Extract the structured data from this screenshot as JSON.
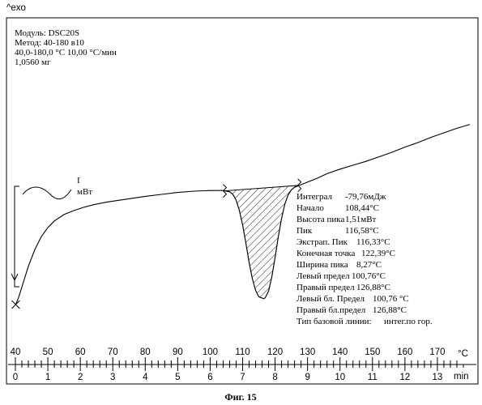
{
  "top_label": "^exo",
  "header": {
    "lines": [
      "Модуль:  DSC20S",
      "Метод:  40-180 в10",
      "40,0-180,0 °C 10,00 °C/мин",
      "1,0560 мг"
    ]
  },
  "scale_bar": {
    "value": "I",
    "unit": "мВт"
  },
  "results": [
    {
      "label": "Интеграл",
      "value": "-79,76мДж"
    },
    {
      "label": "Начало",
      "value": "108,44°C"
    },
    {
      "label": "Высота пика",
      "value": "1,51мВт"
    },
    {
      "label": "Пик",
      "value": "116,58°C"
    },
    {
      "label": "Экстрап. Пик",
      "value": "116,33°C"
    },
    {
      "label": "Конечная точка",
      "value": "122,39°C"
    },
    {
      "label": "Ширина пика",
      "value": "8,27°C"
    },
    {
      "label": "Левый предел",
      "value": "100,76°C"
    },
    {
      "label": "Правый предел",
      "value": "126,88°C"
    },
    {
      "label": "Левый бл. Предел",
      "value": "100,76 °C"
    },
    {
      "label": "Правый бл.предел",
      "value": "126,88°C"
    },
    {
      "label": "Тип базовой линии:",
      "value": "интег.по гор."
    }
  ],
  "caption": "Фиг. 15",
  "chart_data": {
    "type": "line",
    "temperature_axis": {
      "unit": "°C",
      "range": [
        40,
        180
      ],
      "major_ticks": [
        40,
        50,
        60,
        70,
        80,
        90,
        100,
        110,
        120,
        130,
        140,
        150,
        160,
        170
      ],
      "minor_step": 2
    },
    "time_axis": {
      "unit": "min",
      "range": [
        0,
        14
      ],
      "major_ticks": [
        0,
        1,
        2,
        3,
        4,
        5,
        6,
        7,
        8,
        9,
        10,
        11,
        12,
        13
      ],
      "minor_step": 0.2
    },
    "series": [
      {
        "x": [
          40.1,
          41,
          42,
          43,
          44,
          46,
          48,
          50,
          52,
          55,
          58,
          61,
          64,
          68,
          72,
          76,
          80,
          85,
          90,
          95,
          100,
          104,
          106,
          107,
          108,
          109,
          110,
          111,
          112,
          113,
          114,
          115,
          116,
          116.6,
          117,
          118,
          119,
          120,
          121,
          122,
          123,
          124,
          125,
          126,
          127,
          128,
          130,
          133,
          136,
          140,
          144,
          148,
          152,
          156,
          160,
          164,
          168,
          172,
          176,
          180
        ],
        "y": [
          -1.35,
          -1.24,
          -1.08,
          -0.92,
          -0.76,
          -0.5,
          -0.3,
          -0.16,
          -0.06,
          0.04,
          0.1,
          0.15,
          0.19,
          0.23,
          0.26,
          0.29,
          0.32,
          0.35,
          0.38,
          0.4,
          0.41,
          0.41,
          0.39,
          0.35,
          0.26,
          0.1,
          -0.12,
          -0.4,
          -0.7,
          -0.95,
          -1.13,
          -1.23,
          -1.25,
          -1.26,
          -1.24,
          -1.14,
          -0.92,
          -0.62,
          -0.3,
          -0.02,
          0.2,
          0.34,
          0.42,
          0.46,
          0.48,
          0.5,
          0.54,
          0.6,
          0.67,
          0.74,
          0.8,
          0.86,
          0.93,
          1.0,
          1.08,
          1.15,
          1.23,
          1.3,
          1.37,
          1.43
        ]
      }
    ],
    "peak_area": {
      "from": 104.5,
      "to": 127.5,
      "fill": "hatched"
    },
    "limit_markers": [
      104.5,
      127.5
    ],
    "scale_bar_mW": 1
  }
}
